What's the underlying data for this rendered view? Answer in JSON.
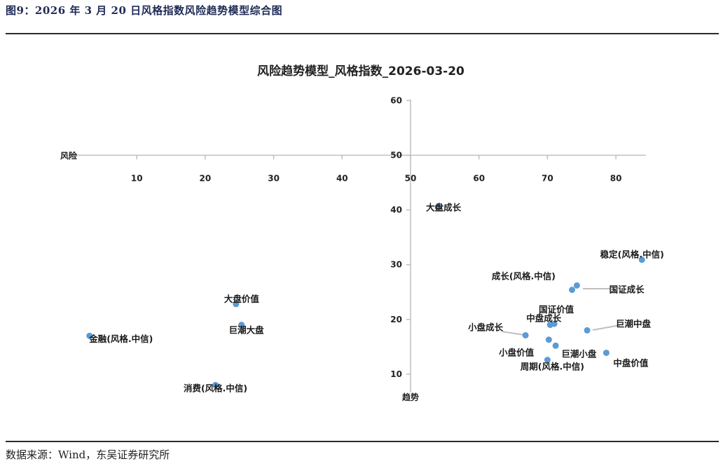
{
  "figure_title": "图9：2026 年 3 月 20 日风格指数风险趋势模型综合图",
  "source_note": "数据来源：Wind，东吴证券研究所",
  "colors": {
    "point": "#5b9bd5",
    "axis": "#bfbfbf",
    "leader": "#bfbfbf",
    "rule": "#2b2b2b"
  },
  "chart_data": {
    "type": "scatter",
    "title": "风险趋势模型_风格指数_2026-03-20",
    "xlabel": "风险",
    "ylabel": "趋势",
    "xlim": [
      0,
      84
    ],
    "ylim": [
      7,
      61
    ],
    "x_ticks": [
      10,
      20,
      30,
      40,
      50,
      60,
      70,
      80
    ],
    "y_ticks": [
      10,
      20,
      30,
      40,
      50,
      60
    ],
    "axes_cross": {
      "x": 50,
      "y": 50
    },
    "grid": false,
    "legend": "none",
    "points": [
      {
        "label": "大盘成长",
        "x": 54.0,
        "y": 40.5
      },
      {
        "label": "稳定(风格.中信)",
        "x": 83.8,
        "y": 30.9
      },
      {
        "label": "成长(风格.中信)",
        "x": 74.3,
        "y": 26.2
      },
      {
        "label": "国证成长",
        "x": 73.6,
        "y": 25.4
      },
      {
        "label": "国证价值",
        "x": 71.0,
        "y": 19.2
      },
      {
        "label": "中盘成长",
        "x": 70.4,
        "y": 19.0
      },
      {
        "label": "巨潮中盘",
        "x": 75.8,
        "y": 18.0
      },
      {
        "label": "小盘成长",
        "x": 66.8,
        "y": 17.1
      },
      {
        "label": "巨潮小盘",
        "x": 70.2,
        "y": 16.3
      },
      {
        "label": "小盘价值",
        "x": 71.2,
        "y": 15.2
      },
      {
        "label": "中盘价值",
        "x": 78.6,
        "y": 13.9
      },
      {
        "label": "周期(风格.中信)",
        "x": 70.0,
        "y": 12.6
      },
      {
        "label": "大盘价值",
        "x": 24.5,
        "y": 22.8
      },
      {
        "label": "巨潮大盘",
        "x": 25.3,
        "y": 19.0
      },
      {
        "label": "金融(风格.中信)",
        "x": 3.1,
        "y": 17.0
      },
      {
        "label": "消费(风格.中信)",
        "x": 21.5,
        "y": 8.0
      }
    ]
  }
}
